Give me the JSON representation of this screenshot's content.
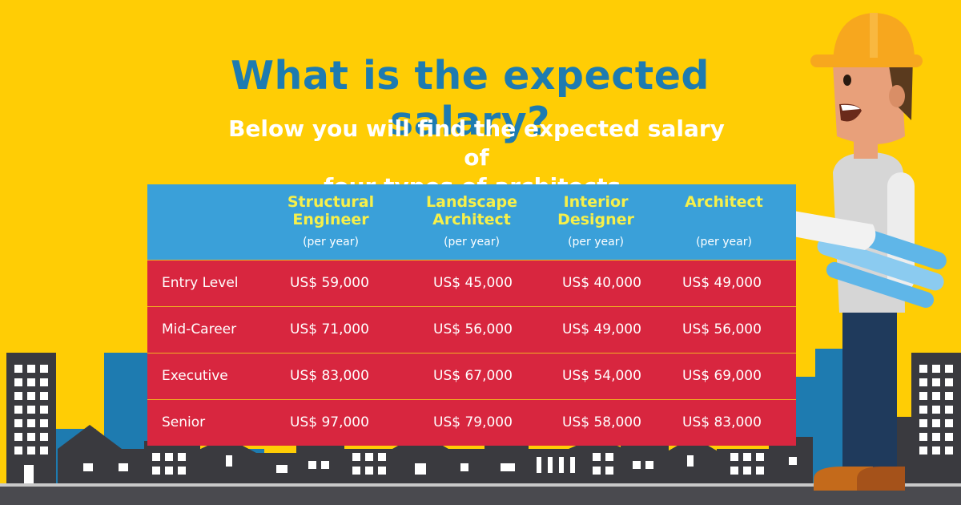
{
  "headline": "What is the expected salary?",
  "subheadline": [
    "Below you will find the expected salary of",
    "four types of architects."
  ],
  "table": {
    "columns": [
      {
        "name": [
          "Structural",
          "Engineer"
        ],
        "unit": "(per year)"
      },
      {
        "name": [
          "Landscape",
          "Architect"
        ],
        "unit": "(per year)"
      },
      {
        "name": [
          "Interior",
          "Designer"
        ],
        "unit": "(per year)"
      },
      {
        "name": [
          "Architect"
        ],
        "unit": "(per year)"
      }
    ],
    "rows": [
      {
        "label": "Entry Level",
        "values": [
          "US$ 59,000",
          "US$ 45,000",
          "US$ 40,000",
          "US$ 49,000"
        ]
      },
      {
        "label": "Mid-Career",
        "values": [
          "US$ 71,000",
          "US$ 56,000",
          "US$ 49,000",
          "US$ 56,000"
        ]
      },
      {
        "label": "Executive",
        "values": [
          "US$ 83,000",
          "US$ 67,000",
          "US$ 54,000",
          "US$ 69,000"
        ]
      },
      {
        "label": "Senior",
        "values": [
          "US$ 97,000",
          "US$ 79,000",
          "US$ 58,000",
          "US$ 83,000"
        ]
      }
    ]
  },
  "colors": {
    "background": "#FFCD05",
    "headline": "#1E7BB0",
    "header_band": "#3AA0D9",
    "header_text": "#F7F04A",
    "row_fill": "#D8263F",
    "buildings_dark": "#3A3A3F",
    "buildings_blue": "#1E7BB0"
  },
  "illustration": {
    "scene": "city-skyline",
    "character": "architect-holding-blueprints"
  }
}
